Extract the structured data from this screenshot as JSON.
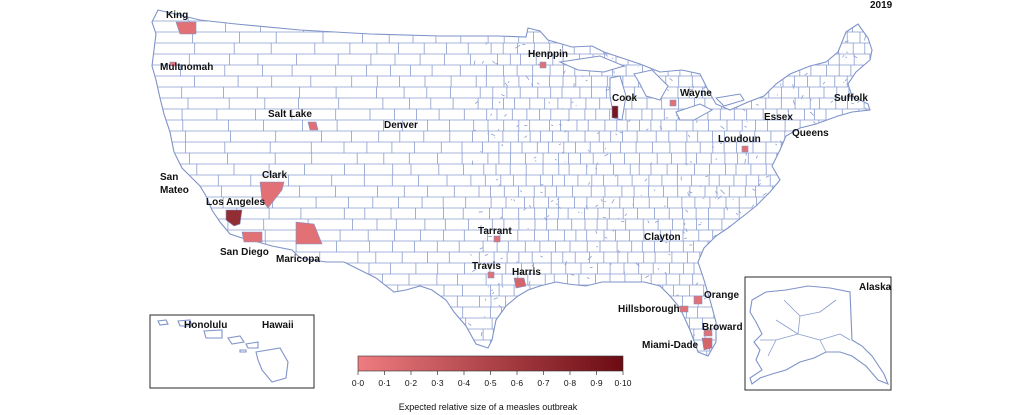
{
  "year": "2019",
  "colors": {
    "low": "#ee7c80",
    "high": "#6b0b12",
    "county_border": "#8a9ccf",
    "background": "#ffffff"
  },
  "legend": {
    "title": "Expected relative size of a measles outbreak",
    "ticks": [
      "0·0",
      "0·1",
      "0·2",
      "0·3",
      "0·4",
      "0·5",
      "0·6",
      "0·7",
      "0·8",
      "0·9",
      "0·10"
    ]
  },
  "counties": [
    {
      "name": "King",
      "value": 0.1
    },
    {
      "name": "Multnomah",
      "value": 0.05
    },
    {
      "name": "Salt Lake",
      "value": 0.1
    },
    {
      "name": "Denver",
      "value": 0.0
    },
    {
      "name": "San Mateo",
      "value": 0.0
    },
    {
      "name": "Clark",
      "value": 0.1
    },
    {
      "name": "Los Angeles",
      "value": 0.7
    },
    {
      "name": "San Diego",
      "value": 0.1
    },
    {
      "name": "Maricopa",
      "value": 0.1
    },
    {
      "name": "Henppin",
      "value": 0.1
    },
    {
      "name": "Cook",
      "value": 0.9
    },
    {
      "name": "Wayne",
      "value": 0.1
    },
    {
      "name": "Essex",
      "value": 0.0
    },
    {
      "name": "Suffolk",
      "value": 0.0
    },
    {
      "name": "Queens",
      "value": 0.0
    },
    {
      "name": "Loudoun",
      "value": 0.1
    },
    {
      "name": "Tarrant",
      "value": 0.1
    },
    {
      "name": "Clayton",
      "value": 0.0
    },
    {
      "name": "Travis",
      "value": 0.1
    },
    {
      "name": "Harris",
      "value": 0.2
    },
    {
      "name": "Hillsborough",
      "value": 0.1
    },
    {
      "name": "Orange",
      "value": 0.1
    },
    {
      "name": "Broward",
      "value": 0.1
    },
    {
      "name": "Miami-Dade",
      "value": 0.2
    },
    {
      "name": "Honolulu",
      "value": 0.2
    }
  ],
  "insets": {
    "hawaii": "Hawaii",
    "alaska": "Alaska"
  }
}
